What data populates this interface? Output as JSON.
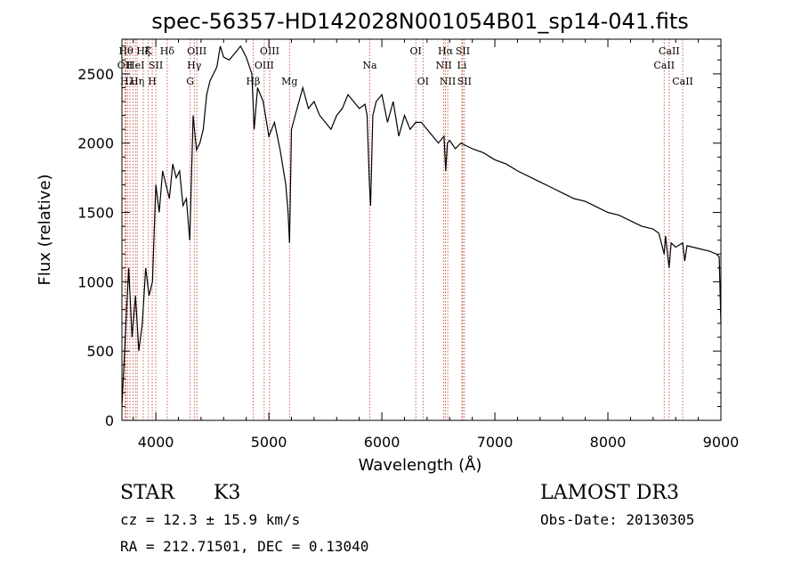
{
  "chart_data": {
    "type": "line",
    "title": "spec-56357-HD142028N001054B01_sp14-041.fits",
    "xlabel": "Wavelength (Å)",
    "ylabel": "Flux (relative)",
    "xlim": [
      3700,
      9000
    ],
    "ylim": [
      0,
      2750
    ],
    "x_ticks": [
      4000,
      5000,
      6000,
      7000,
      8000,
      9000
    ],
    "y_ticks": [
      0,
      500,
      1000,
      1500,
      2000,
      2500
    ],
    "x_tick_labels": [
      "4000",
      "5000",
      "6000",
      "7000",
      "8000",
      "9000"
    ],
    "y_tick_labels": [
      "0",
      "500",
      "1000",
      "1500",
      "2000",
      "2500"
    ],
    "grid": false,
    "series": [
      {
        "x": [
          3700,
          3730,
          3760,
          3790,
          3820,
          3850,
          3880,
          3910,
          3940,
          3970,
          4000,
          4030,
          4060,
          4090,
          4120,
          4150,
          4180,
          4210,
          4240,
          4270,
          4300,
          4330,
          4360,
          4390,
          4420,
          4450,
          4480,
          4510,
          4540,
          4570,
          4600,
          4650,
          4700,
          4750,
          4800,
          4850,
          4870,
          4900,
          4950,
          5000,
          5050,
          5100,
          5150,
          5170,
          5183,
          5200,
          5250,
          5300,
          5350,
          5400,
          5450,
          5500,
          5550,
          5600,
          5650,
          5700,
          5750,
          5800,
          5850,
          5870,
          5890,
          5900,
          5920,
          5950,
          6000,
          6050,
          6100,
          6150,
          6200,
          6250,
          6300,
          6350,
          6400,
          6450,
          6500,
          6550,
          6565,
          6580,
          6600,
          6650,
          6700,
          6800,
          6900,
          7000,
          7100,
          7200,
          7300,
          7400,
          7500,
          7600,
          7700,
          7800,
          7900,
          8000,
          8100,
          8200,
          8300,
          8400,
          8450,
          8498,
          8510,
          8542,
          8560,
          8600,
          8662,
          8680,
          8700,
          8800,
          8900,
          8960,
          8985,
          9000
        ],
        "y": [
          100,
          600,
          1100,
          600,
          900,
          500,
          700,
          1100,
          900,
          1000,
          1700,
          1500,
          1800,
          1700,
          1600,
          1850,
          1750,
          1800,
          1550,
          1600,
          1300,
          2200,
          1950,
          2000,
          2100,
          2350,
          2450,
          2500,
          2550,
          2700,
          2620,
          2600,
          2650,
          2700,
          2620,
          2500,
          2100,
          2400,
          2300,
          2050,
          2150,
          1950,
          1700,
          1500,
          1280,
          2100,
          2250,
          2400,
          2250,
          2300,
          2200,
          2150,
          2100,
          2200,
          2250,
          2350,
          2300,
          2250,
          2280,
          2200,
          1700,
          1550,
          2200,
          2300,
          2350,
          2150,
          2300,
          2050,
          2200,
          2100,
          2150,
          2150,
          2100,
          2050,
          2000,
          2050,
          1800,
          2000,
          2020,
          1960,
          2000,
          1960,
          1930,
          1880,
          1850,
          1800,
          1760,
          1720,
          1680,
          1640,
          1600,
          1580,
          1540,
          1500,
          1480,
          1440,
          1400,
          1380,
          1350,
          1200,
          1330,
          1100,
          1280,
          1250,
          1280,
          1150,
          1260,
          1240,
          1220,
          1200,
          1180,
          700
        ]
      }
    ],
    "line_markers": [
      {
        "x": 3736,
        "label": "Hθ",
        "row": 1
      },
      {
        "x": 3728,
        "label": "OII",
        "row": 2
      },
      {
        "x": 3750,
        "label": "Hλ",
        "row": 3
      },
      {
        "x": 3771,
        "label": "",
        "row": 0
      },
      {
        "x": 3798,
        "label": "",
        "row": 0
      },
      {
        "x": 3820,
        "label": "HeI",
        "row": 2
      },
      {
        "x": 3835,
        "label": "Hη",
        "row": 3
      },
      {
        "x": 3889,
        "label": "Hζ",
        "row": 0
      },
      {
        "x": 3934,
        "label": "K",
        "row": 1
      },
      {
        "x": 3968,
        "label": "H",
        "row": 3
      },
      {
        "x": 4000,
        "label": "SII",
        "row": 2
      },
      {
        "x": 4101,
        "label": "Hδ",
        "row": 1
      },
      {
        "x": 4304,
        "label": "G",
        "row": 3
      },
      {
        "x": 4340,
        "label": "Hγ",
        "row": 2
      },
      {
        "x": 4363,
        "label": "OIII",
        "row": 1
      },
      {
        "x": 4861,
        "label": "Hβ",
        "row": 3
      },
      {
        "x": 4959,
        "label": "OIII",
        "row": 2
      },
      {
        "x": 5007,
        "label": "OIII",
        "row": 1
      },
      {
        "x": 5183,
        "label": "Mg",
        "row": 3
      },
      {
        "x": 5893,
        "label": "Na",
        "row": 2
      },
      {
        "x": 6300,
        "label": "OI",
        "row": 1
      },
      {
        "x": 6364,
        "label": "OI",
        "row": 3
      },
      {
        "x": 6548,
        "label": "NII",
        "row": 2
      },
      {
        "x": 6563,
        "label": "Hα",
        "row": 1
      },
      {
        "x": 6583,
        "label": "NII",
        "row": 3
      },
      {
        "x": 6708,
        "label": "Li",
        "row": 2
      },
      {
        "x": 6716,
        "label": "SII",
        "row": 1
      },
      {
        "x": 6731,
        "label": "SII",
        "row": 3
      },
      {
        "x": 8498,
        "label": "CaII",
        "row": 2
      },
      {
        "x": 8542,
        "label": "CaII",
        "row": 1
      },
      {
        "x": 8662,
        "label": "CaII",
        "row": 3
      }
    ]
  },
  "info": {
    "object_class": "STAR",
    "subclass": "K3",
    "cz": "cz = 12.3 ± 15.9 km/s",
    "coords": "RA = 212.71501, DEC =    0.13040",
    "survey": "LAMOST DR3",
    "obs_date": "Obs-Date: 20130305"
  }
}
